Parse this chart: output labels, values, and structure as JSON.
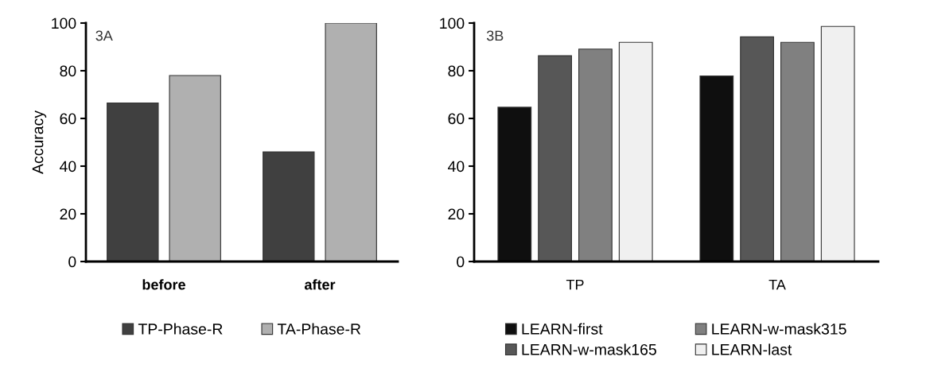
{
  "chart_data": [
    {
      "type": "bar",
      "ylabel": "Accuracy",
      "annotations": [
        "3A"
      ],
      "categories": [
        "before",
        "after"
      ],
      "ylim": [
        0,
        100
      ],
      "yticks": [
        0,
        20,
        40,
        60,
        80,
        100
      ],
      "grid": false,
      "legend": "bottom",
      "series": [
        {
          "name": "TP-Phase-R",
          "color": "#404040",
          "values": [
            66.5,
            46
          ]
        },
        {
          "name": "TA-Phase-R",
          "color": "#b0b0b0",
          "values": [
            78,
            100
          ]
        }
      ]
    },
    {
      "type": "bar",
      "annotations": [
        "3B"
      ],
      "categories": [
        "TP",
        "TA"
      ],
      "ylim": [
        0,
        100
      ],
      "yticks": [
        0,
        20,
        40,
        60,
        80,
        100
      ],
      "grid": false,
      "legend": "bottom",
      "series": [
        {
          "name": "LEARN-first",
          "color": "#0f0f0f",
          "values": [
            64.7,
            77.8
          ]
        },
        {
          "name": "LEARN-w-mask165",
          "color": "#575757",
          "values": [
            86.3,
            94.2
          ]
        },
        {
          "name": "LEARN-w-mask315",
          "color": "#808080",
          "values": [
            89.1,
            91.9
          ]
        },
        {
          "name": "LEARN-last",
          "color": "#f0f0f0",
          "values": [
            91.9,
            98.6
          ]
        }
      ]
    }
  ]
}
